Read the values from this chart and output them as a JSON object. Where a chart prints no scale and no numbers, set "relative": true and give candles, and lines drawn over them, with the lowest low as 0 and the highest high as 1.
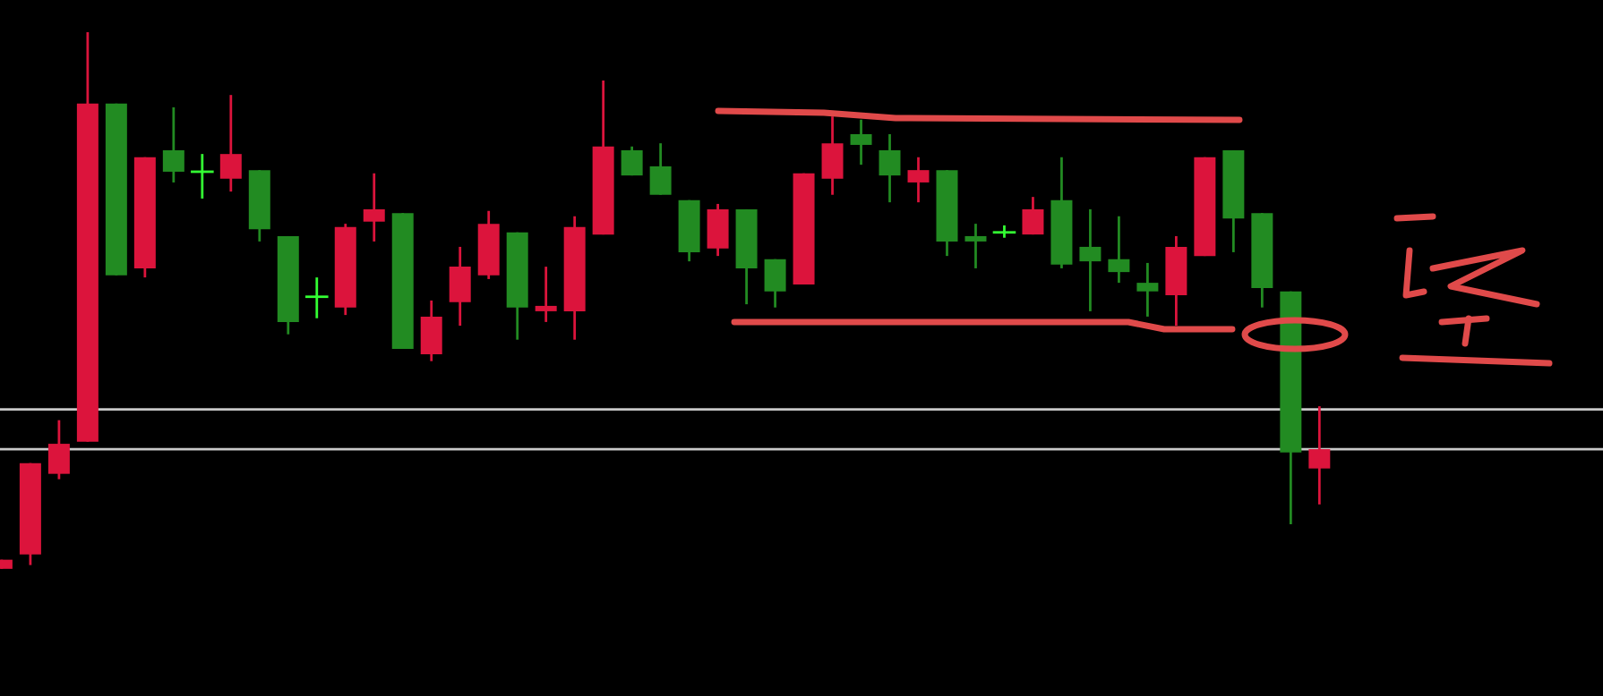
{
  "chart_data": {
    "type": "candlestick",
    "relative": true,
    "grid": false,
    "categories": [
      null,
      null,
      null,
      null,
      null,
      null,
      null,
      null,
      null,
      null,
      null,
      null,
      null,
      null,
      null,
      null,
      null,
      null,
      null,
      null,
      null,
      null,
      null,
      null,
      null,
      null,
      null,
      null,
      null,
      null,
      null,
      null,
      null,
      null,
      null,
      null,
      null,
      null,
      null,
      null,
      null,
      null,
      null,
      null,
      null,
      null,
      null
    ],
    "ohlc": [
      [
        0,
        0.017,
        0,
        0.017
      ],
      [
        0.027,
        0.197,
        0.007,
        0.197
      ],
      [
        0.177,
        0.277,
        0.167,
        0.233
      ],
      [
        0.237,
        1,
        0.237,
        0.867
      ],
      [
        0.867,
        0.867,
        0.547,
        0.547
      ],
      [
        0.56,
        0.767,
        0.543,
        0.767
      ],
      [
        0.78,
        0.86,
        0.72,
        0.74
      ],
      [
        0.74,
        0.773,
        0.69,
        0.74
      ],
      [
        0.727,
        0.883,
        0.703,
        0.773
      ],
      [
        0.743,
        0.743,
        0.61,
        0.633
      ],
      [
        0.62,
        0.62,
        0.437,
        0.46
      ],
      [
        0.507,
        0.543,
        0.467,
        0.507
      ],
      [
        0.487,
        0.643,
        0.473,
        0.637
      ],
      [
        0.647,
        0.737,
        0.61,
        0.67
      ],
      [
        0.663,
        0.663,
        0.41,
        0.41
      ],
      [
        0.4,
        0.5,
        0.387,
        0.47
      ],
      [
        0.497,
        0.6,
        0.453,
        0.563
      ],
      [
        0.547,
        0.667,
        0.54,
        0.643
      ],
      [
        0.627,
        0.627,
        0.427,
        0.487
      ],
      [
        0.48,
        0.563,
        0.46,
        0.49
      ],
      [
        0.48,
        0.657,
        0.427,
        0.637
      ],
      [
        0.623,
        0.91,
        0.623,
        0.787
      ],
      [
        0.78,
        0.787,
        0.733,
        0.733
      ],
      [
        0.75,
        0.793,
        0.697,
        0.697
      ],
      [
        0.687,
        0.687,
        0.573,
        0.59
      ],
      [
        0.597,
        0.68,
        0.583,
        0.67
      ],
      [
        0.67,
        0.67,
        0.493,
        0.56
      ],
      [
        0.577,
        0.577,
        0.487,
        0.517
      ],
      [
        0.53,
        0.737,
        0.53,
        0.737
      ],
      [
        0.727,
        0.843,
        0.697,
        0.793
      ],
      [
        0.81,
        0.837,
        0.753,
        0.79
      ],
      [
        0.78,
        0.81,
        0.683,
        0.733
      ],
      [
        0.72,
        0.767,
        0.683,
        0.743
      ],
      [
        0.743,
        0.743,
        0.583,
        0.61
      ],
      [
        0.62,
        0.643,
        0.56,
        0.61
      ],
      [
        0.627,
        0.64,
        0.617,
        0.627
      ],
      [
        0.623,
        0.693,
        0.623,
        0.67
      ],
      [
        0.687,
        0.767,
        0.56,
        0.567
      ],
      [
        0.6,
        0.67,
        0.48,
        0.573
      ],
      [
        0.577,
        0.657,
        0.533,
        0.553
      ],
      [
        0.533,
        0.57,
        0.47,
        0.517
      ],
      [
        0.51,
        0.62,
        0.453,
        0.6
      ],
      [
        0.583,
        0.767,
        0.583,
        0.767
      ],
      [
        0.78,
        0.78,
        0.59,
        0.653
      ],
      [
        0.663,
        0.663,
        0.487,
        0.523
      ],
      [
        0.517,
        0.517,
        0.083,
        0.217
      ],
      [
        0.187,
        0.303,
        0.12,
        0.223
      ]
    ],
    "colors": [
      "#dc143c",
      "#dc143c",
      "#dc143c",
      "#dc143c",
      "#228b22",
      "#dc143c",
      "#228b22",
      "#33ff33",
      "#dc143c",
      "#228b22",
      "#228b22",
      "#33ff33",
      "#dc143c",
      "#dc143c",
      "#228b22",
      "#dc143c",
      "#dc143c",
      "#dc143c",
      "#228b22",
      "#dc143c",
      "#dc143c",
      "#dc143c",
      "#228b22",
      "#228b22",
      "#228b22",
      "#dc143c",
      "#228b22",
      "#228b22",
      "#dc143c",
      "#dc143c",
      "#228b22",
      "#228b22",
      "#dc143c",
      "#228b22",
      "#228b22",
      "#33ff33",
      "#dc143c",
      "#228b22",
      "#228b22",
      "#228b22",
      "#228b22",
      "#dc143c",
      "#dc143c",
      "#228b22",
      "#228b22",
      "#228b22",
      "#dc143c"
    ],
    "ref_lines": [
      {
        "axis": "y",
        "value": 0.297,
        "color": "#c8c8c8"
      },
      {
        "axis": "y",
        "value": 0.223,
        "color": "#c8c8c8"
      }
    ]
  }
}
